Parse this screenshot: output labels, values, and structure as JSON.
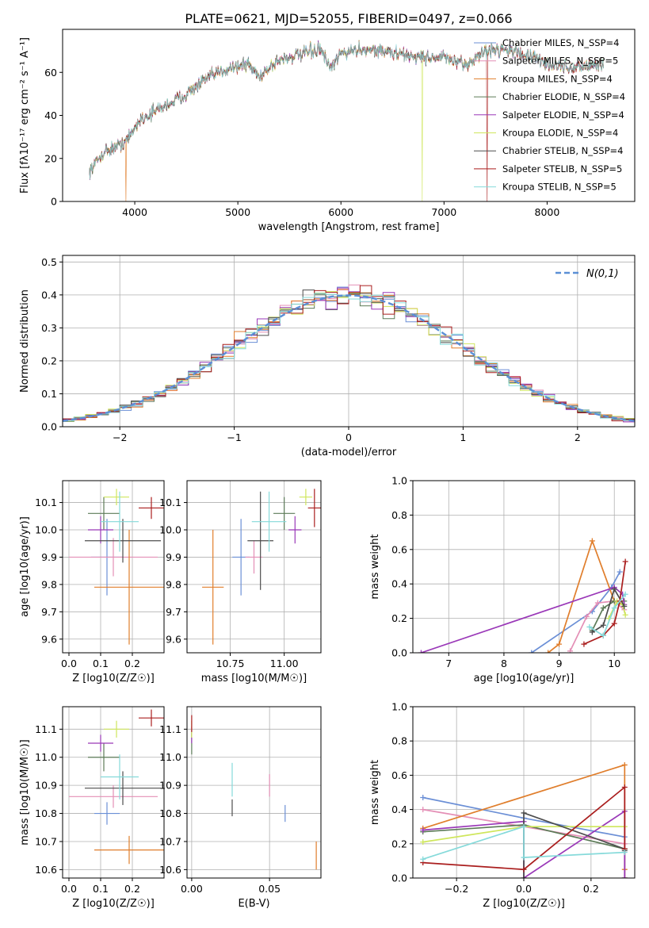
{
  "title": "PLATE=0621, MJD=52055, FIBERID=0497, z=0.066",
  "colors": {
    "Chabrier MILES": "#6b8fd6",
    "Salpeter MILES": "#e48fb6",
    "Kroupa MILES": "#e07e2c",
    "Chabrier ELODIE": "#5d7b58",
    "Salpeter ELODIE": "#9a38b8",
    "Kroupa ELODIE": "#cfe65c",
    "Chabrier STELIB": "#4d4d4d",
    "Salpeter STELIB": "#aa1e1e",
    "Kroupa STELIB": "#85dada"
  },
  "chart_data": [
    {
      "id": "spectrum",
      "type": "line",
      "xlabel": "wavelength [Angstrom, rest frame]",
      "ylabel": "Flux [fλ10⁻¹⁷ erg cm⁻² s⁻¹ A⁻¹]",
      "xlim": [
        3300,
        8850
      ],
      "ylim": [
        0,
        80
      ],
      "xticks": [
        4000,
        5000,
        6000,
        7000,
        8000
      ],
      "yticks": [
        0,
        20,
        40,
        60
      ],
      "grid": false,
      "legend_position": "right",
      "legend": [
        "Chabrier MILES, N_SSP=4",
        "Salpeter MILES, N_SSP=5",
        "Kroupa MILES, N_SSP=4",
        "Chabrier ELODIE, N_SSP=4",
        "Salpeter ELODIE, N_SSP=4",
        "Kroupa ELODIE, N_SSP=4",
        "Chabrier STELIB, N_SSP=4",
        "Salpeter STELIB, N_SSP=5",
        "Kroupa STELIB, N_SSP=5"
      ],
      "continuum": {
        "x": [
          3560,
          3700,
          3850,
          3950,
          4050,
          4200,
          4350,
          4500,
          4700,
          4900,
          5100,
          5200,
          5400,
          5600,
          5800,
          5900,
          6000,
          6200,
          6400,
          6600,
          6800,
          7000,
          7200,
          7400,
          7600,
          7800,
          8000,
          8200,
          8400,
          8550
        ],
        "y": [
          14,
          23,
          26,
          30,
          38,
          42,
          46,
          50,
          57,
          62,
          64,
          58,
          66,
          68,
          71,
          61,
          69,
          71,
          70,
          68,
          67,
          67,
          63,
          70,
          71,
          68,
          64,
          62,
          63,
          64
        ]
      },
      "drops": [
        {
          "series": "Kroupa MILES",
          "x": 3915,
          "y": 0
        },
        {
          "series": "Kroupa ELODIE",
          "x": 6790,
          "y": 0
        },
        {
          "series": "Salpeter STELIB",
          "x": 7420,
          "y": 0
        }
      ]
    },
    {
      "id": "residuals",
      "type": "histogram",
      "xlabel": "(data-model)/error",
      "ylabel": "Normed distribution",
      "xlim": [
        -2.5,
        2.5
      ],
      "ylim": [
        0,
        0.52
      ],
      "xticks": [
        -2,
        -1,
        0,
        1,
        2
      ],
      "yticks": [
        0.0,
        0.1,
        0.2,
        0.3,
        0.4,
        0.5
      ],
      "grid": true,
      "bin_width": 0.1,
      "legend_position": "top-right",
      "reference_curve": {
        "label": "N(0,1)",
        "color": "#5b8fd6"
      }
    },
    {
      "id": "age-Z",
      "type": "scatter",
      "xlabel": "Z [log10(Z/Z☉)]",
      "ylabel": "age [log10(age/yr)]",
      "xlim": [
        -0.02,
        0.3
      ],
      "ylim": [
        9.55,
        10.18
      ],
      "xticks": [
        0.0,
        0.1,
        0.2
      ],
      "yticks": [
        9.6,
        9.7,
        9.8,
        9.9,
        10.0,
        10.1
      ],
      "grid": true,
      "points": [
        {
          "series": "Chabrier MILES",
          "x": 0.12,
          "y": 9.9,
          "xerr": 0.05,
          "yerr": 0.14
        },
        {
          "series": "Salpeter MILES",
          "x": 0.14,
          "y": 9.9,
          "xerr": 0.14,
          "yerr": 0.07
        },
        {
          "series": "Kroupa MILES",
          "x": 0.19,
          "y": 9.79,
          "xerr": 0.11,
          "yerr": 0.21
        },
        {
          "series": "Chabrier ELODIE",
          "x": 0.11,
          "y": 10.06,
          "xerr": 0.05,
          "yerr": 0.06
        },
        {
          "series": "Salpeter ELODIE",
          "x": 0.1,
          "y": 10.0,
          "xerr": 0.04,
          "yerr": 0.05
        },
        {
          "series": "Kroupa ELODIE",
          "x": 0.15,
          "y": 10.12,
          "xerr": 0.04,
          "yerr": 0.03
        },
        {
          "series": "Chabrier STELIB",
          "x": 0.17,
          "y": 9.96,
          "xerr": 0.12,
          "yerr": 0.08
        },
        {
          "series": "Salpeter STELIB",
          "x": 0.26,
          "y": 10.08,
          "xerr": 0.04,
          "yerr": 0.04
        },
        {
          "series": "Kroupa STELIB",
          "x": 0.16,
          "y": 10.03,
          "xerr": 0.06,
          "yerr": 0.11
        }
      ]
    },
    {
      "id": "age-mass",
      "type": "scatter",
      "xlabel": "mass [log10(M/M☉)]",
      "ylabel": "",
      "xlim": [
        10.55,
        11.17
      ],
      "ylim": [
        9.55,
        10.18
      ],
      "xticks": [
        10.75,
        11.0
      ],
      "yticks": [
        9.6,
        9.7,
        9.8,
        9.9,
        10.0,
        10.1
      ],
      "grid": true,
      "points": [
        {
          "series": "Chabrier MILES",
          "x": 10.8,
          "y": 9.9,
          "xerr": 0.04,
          "yerr": 0.14
        },
        {
          "series": "Salpeter MILES",
          "x": 10.86,
          "y": 9.9,
          "xerr": 0.04,
          "yerr": 0.06
        },
        {
          "series": "Kroupa MILES",
          "x": 10.67,
          "y": 9.79,
          "xerr": 0.05,
          "yerr": 0.21
        },
        {
          "series": "Chabrier ELODIE",
          "x": 11.0,
          "y": 10.06,
          "xerr": 0.05,
          "yerr": 0.06
        },
        {
          "series": "Salpeter ELODIE",
          "x": 11.05,
          "y": 10.0,
          "xerr": 0.03,
          "yerr": 0.05
        },
        {
          "series": "Kroupa ELODIE",
          "x": 11.1,
          "y": 10.12,
          "xerr": 0.03,
          "yerr": 0.03
        },
        {
          "series": "Chabrier STELIB",
          "x": 10.89,
          "y": 9.96,
          "xerr": 0.06,
          "yerr": 0.18
        },
        {
          "series": "Salpeter STELIB",
          "x": 11.14,
          "y": 10.08,
          "xerr": 0.03,
          "yerr": 0.07
        },
        {
          "series": "Kroupa STELIB",
          "x": 10.93,
          "y": 10.03,
          "xerr": 0.08,
          "yerr": 0.11
        }
      ]
    },
    {
      "id": "weight-age",
      "type": "line",
      "xlabel": "age [log10(age/yr)]",
      "ylabel": "mass weight",
      "xlim": [
        6.35,
        10.37
      ],
      "ylim": [
        0,
        1
      ],
      "xticks": [
        7,
        8,
        9,
        10
      ],
      "yticks": [
        0.0,
        0.2,
        0.4,
        0.6,
        0.8,
        1.0
      ],
      "grid": true,
      "series": [
        {
          "name": "Chabrier MILES",
          "x": [
            8.5,
            9.6,
            9.95,
            10.1
          ],
          "y": [
            0.0,
            0.24,
            0.38,
            0.47
          ]
        },
        {
          "name": "Salpeter MILES",
          "x": [
            9.2,
            9.5,
            9.7,
            10.0,
            10.18
          ],
          "y": [
            0.01,
            0.21,
            0.29,
            0.3,
            0.25
          ]
        },
        {
          "name": "Kroupa MILES",
          "x": [
            8.8,
            9.0,
            9.6,
            10.0
          ],
          "y": [
            0.0,
            0.05,
            0.65,
            0.3
          ]
        },
        {
          "name": "Chabrier ELODIE",
          "x": [
            9.6,
            9.8,
            10.0,
            10.18
          ],
          "y": [
            0.13,
            0.26,
            0.3,
            0.3
          ]
        },
        {
          "name": "Salpeter ELODIE",
          "x": [
            6.5,
            10.0,
            10.15,
            10.18
          ],
          "y": [
            0.0,
            0.38,
            0.34,
            0.28
          ]
        },
        {
          "name": "Kroupa ELODIE",
          "x": [
            9.9,
            10.05,
            10.15,
            10.2
          ],
          "y": [
            0.2,
            0.3,
            0.28,
            0.22
          ]
        },
        {
          "name": "Chabrier STELIB",
          "x": [
            9.6,
            9.8,
            10.0,
            10.18
          ],
          "y": [
            0.12,
            0.16,
            0.37,
            0.27
          ]
        },
        {
          "name": "Salpeter STELIB",
          "x": [
            9.45,
            9.8,
            10.0,
            10.1,
            10.2
          ],
          "y": [
            0.05,
            0.1,
            0.17,
            0.3,
            0.53
          ]
        },
        {
          "name": "Kroupa STELIB",
          "x": [
            9.55,
            9.8,
            10.0,
            10.2
          ],
          "y": [
            0.15,
            0.1,
            0.26,
            0.34
          ]
        }
      ]
    },
    {
      "id": "mass-Z",
      "type": "scatter",
      "xlabel": "Z [log10(Z/Z☉)]",
      "ylabel": "mass [log10(M/M☉)]",
      "xlim": [
        -0.02,
        0.3
      ],
      "ylim": [
        10.57,
        11.18
      ],
      "xticks": [
        0.0,
        0.1,
        0.2
      ],
      "yticks": [
        10.6,
        10.7,
        10.8,
        10.9,
        11.0,
        11.1
      ],
      "grid": true,
      "points": [
        {
          "series": "Chabrier MILES",
          "x": 0.12,
          "y": 10.8,
          "xerr": 0.04,
          "yerr": 0.04
        },
        {
          "series": "Salpeter MILES",
          "x": 0.14,
          "y": 10.86,
          "xerr": 0.14,
          "yerr": 0.04
        },
        {
          "series": "Kroupa MILES",
          "x": 0.19,
          "y": 10.67,
          "xerr": 0.11,
          "yerr": 0.05
        },
        {
          "series": "Chabrier ELODIE",
          "x": 0.11,
          "y": 11.0,
          "xerr": 0.05,
          "yerr": 0.05
        },
        {
          "series": "Salpeter ELODIE",
          "x": 0.1,
          "y": 11.05,
          "xerr": 0.04,
          "yerr": 0.03
        },
        {
          "series": "Kroupa ELODIE",
          "x": 0.15,
          "y": 11.1,
          "xerr": 0.04,
          "yerr": 0.03
        },
        {
          "series": "Chabrier STELIB",
          "x": 0.17,
          "y": 10.89,
          "xerr": 0.12,
          "yerr": 0.06
        },
        {
          "series": "Salpeter STELIB",
          "x": 0.26,
          "y": 11.14,
          "xerr": 0.04,
          "yerr": 0.03
        },
        {
          "series": "Kroupa STELIB",
          "x": 0.16,
          "y": 10.93,
          "xerr": 0.06,
          "yerr": 0.08
        }
      ]
    },
    {
      "id": "mass-EBV",
      "type": "scatter",
      "xlabel": "E(B-V)",
      "ylabel": "",
      "xlim": [
        -0.003,
        0.083
      ],
      "ylim": [
        10.57,
        11.18
      ],
      "xticks": [
        0.0,
        0.05
      ],
      "yticks": [
        10.6,
        10.7,
        10.8,
        10.9,
        11.0,
        11.1
      ],
      "grid": true,
      "points": [
        {
          "series": "Chabrier MILES",
          "x": 0.06,
          "y": 10.8,
          "yerr": 0.03
        },
        {
          "series": "Salpeter MILES",
          "x": 0.05,
          "y": 10.9,
          "yerr": 0.04
        },
        {
          "series": "Kroupa MILES",
          "x": 0.08,
          "y": 10.65,
          "yerr": 0.05
        },
        {
          "series": "Chabrier ELODIE",
          "x": 0.0,
          "y": 11.05,
          "yerr": 0.04
        },
        {
          "series": "Salpeter ELODIE",
          "x": 0.0,
          "y": 11.08,
          "yerr": 0.03
        },
        {
          "series": "Kroupa ELODIE",
          "x": 0.0,
          "y": 11.1,
          "yerr": 0.03
        },
        {
          "series": "Chabrier STELIB",
          "x": 0.026,
          "y": 10.82,
          "yerr": 0.03
        },
        {
          "series": "Salpeter STELIB",
          "x": 0.0,
          "y": 11.12,
          "yerr": 0.03
        },
        {
          "series": "Kroupa STELIB",
          "x": 0.026,
          "y": 10.92,
          "yerr": 0.06
        }
      ]
    },
    {
      "id": "weight-Z",
      "type": "line",
      "xlabel": "Z [log10(Z/Z☉)]",
      "ylabel": "mass weight",
      "xlim": [
        -0.33,
        0.33
      ],
      "ylim": [
        0,
        1
      ],
      "xticks": [
        -0.2,
        0.0,
        0.2
      ],
      "yticks": [
        0.0,
        0.2,
        0.4,
        0.6,
        0.8,
        1.0
      ],
      "grid": true,
      "series": [
        {
          "name": "Chabrier MILES",
          "x": [
            -0.3,
            0.0,
            0.3,
            0.3
          ],
          "y": [
            0.47,
            0.35,
            0.24,
            0.0
          ]
        },
        {
          "name": "Salpeter MILES",
          "x": [
            -0.3,
            0.0,
            0.3,
            0.3
          ],
          "y": [
            0.4,
            0.3,
            0.2,
            0.0
          ]
        },
        {
          "name": "Kroupa MILES",
          "x": [
            -0.3,
            0.3,
            0.3,
            0.3
          ],
          "y": [
            0.29,
            0.66,
            0.05,
            0.0
          ]
        },
        {
          "name": "Chabrier ELODIE",
          "x": [
            -0.3,
            0.0,
            0.3
          ],
          "y": [
            0.27,
            0.31,
            0.17
          ]
        },
        {
          "name": "Salpeter ELODIE",
          "x": [
            -0.3,
            0.0,
            0.0,
            0.3,
            0.3
          ],
          "y": [
            0.28,
            0.33,
            0.0,
            0.39,
            0.0
          ]
        },
        {
          "name": "Kroupa ELODIE",
          "x": [
            -0.3,
            0.0,
            0.3
          ],
          "y": [
            0.21,
            0.3,
            0.3
          ]
        },
        {
          "name": "Chabrier STELIB",
          "x": [
            0.0,
            0.0,
            0.3,
            0.3
          ],
          "y": [
            0.0,
            0.38,
            0.17,
            0.16
          ]
        },
        {
          "name": "Salpeter STELIB",
          "x": [
            -0.3,
            0.0,
            0.3,
            0.3
          ],
          "y": [
            0.09,
            0.05,
            0.53,
            0.17
          ]
        },
        {
          "name": "Kroupa STELIB",
          "x": [
            -0.3,
            0.0,
            0.0,
            0.3
          ],
          "y": [
            0.11,
            0.3,
            0.12,
            0.15
          ]
        }
      ]
    }
  ]
}
